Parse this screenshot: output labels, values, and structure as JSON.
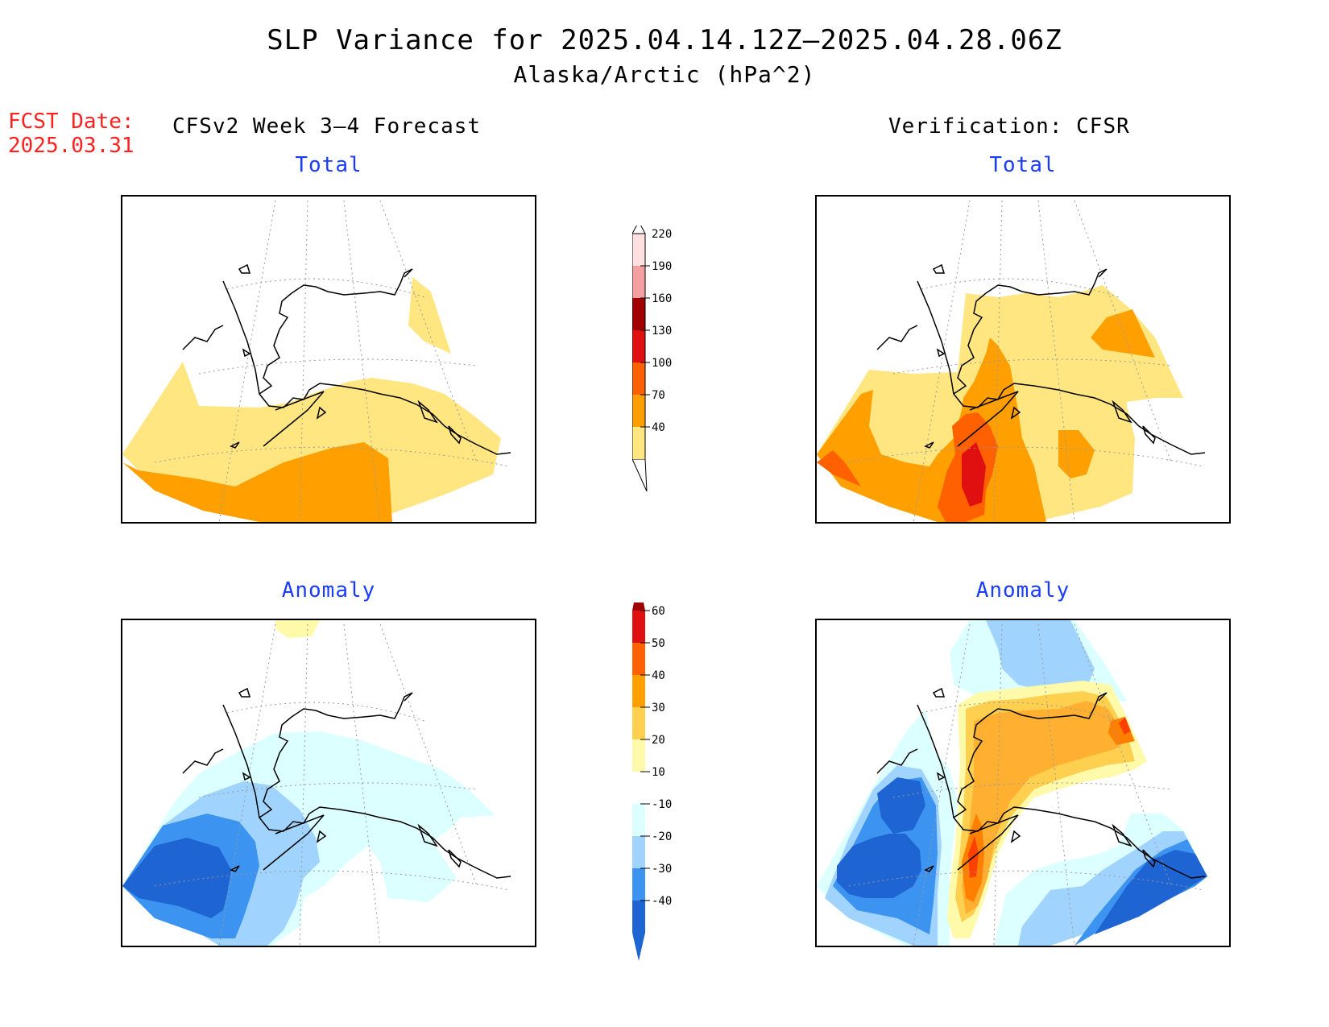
{
  "title": "SLP Variance for 2025.04.14.12Z—2025.04.28.06Z",
  "subtitle": "Alaska/Arctic (hPa^2)",
  "fcst_label": "FCST Date:",
  "fcst_date": "2025.03.31",
  "left_column": "CFSv2 Week 3—4 Forecast",
  "right_column": "Verification: CFSR",
  "panels": [
    {
      "title": "Total"
    },
    {
      "title": "Total"
    },
    {
      "title": "Anomaly"
    },
    {
      "title": "Anomaly"
    }
  ],
  "colors": {
    "land_edge": "#000000",
    "graticule": "#999999",
    "t40": "#ffe680",
    "t70": "#ffa000",
    "t100": "#ff6000",
    "t130": "#e01010",
    "t160": "#a00000",
    "t190": "#f4a0a0",
    "t220": "#ffe0e0",
    "a10": "#fffaaa",
    "a20": "#ffd050",
    "a30": "#ffb030",
    "a40": "#ff8000",
    "a50": "#ff4000",
    "a60": "#d00000",
    "n10": "#dcffff",
    "n20": "#a0d4ff",
    "n30": "#3c94f0",
    "n40": "#1e64d2"
  },
  "total_colorbar": {
    "labels": [
      "40",
      "70",
      "100",
      "130",
      "160",
      "190",
      "220"
    ]
  },
  "anomaly_colorbar": {
    "labels": [
      "-40",
      "-30",
      "-20",
      "-10",
      "10",
      "20",
      "30",
      "40",
      "50",
      "60"
    ]
  }
}
